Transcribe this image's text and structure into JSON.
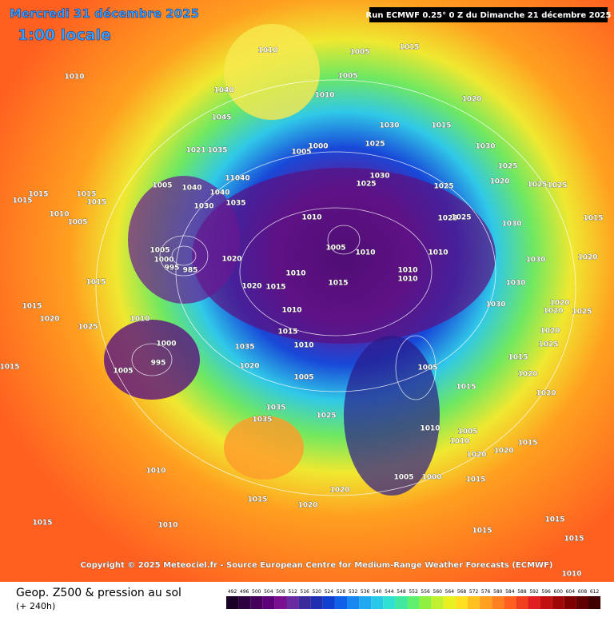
{
  "header": {
    "date": "Mercredi 31 décembre 2025",
    "time": "1:00 locale",
    "run": "Run ECMWF 0.25° 0 Z du Dimanche 21 décembre 2025"
  },
  "copyright": "Copyright © 2025 Meteociel.fr - Source European Centre for Medium-Range Weather Forecasts (ECMWF)",
  "footer": {
    "title": "Geop. Z500 & pression au sol",
    "lead": "(+ 240h)"
  },
  "legend": {
    "levels": [
      492,
      496,
      500,
      504,
      508,
      512,
      516,
      520,
      524,
      528,
      532,
      536,
      540,
      544,
      548,
      552,
      556,
      560,
      564,
      568,
      572,
      576,
      580,
      584,
      588,
      592,
      596,
      600,
      604,
      608,
      612
    ],
    "colors": [
      "#1a0026",
      "#2d0040",
      "#45005c",
      "#5e0078",
      "#7a1090",
      "#6a2aa0",
      "#3a2a9a",
      "#1f2fb0",
      "#1040d0",
      "#1060e8",
      "#1888f0",
      "#20a8f0",
      "#28c8e8",
      "#30e0d0",
      "#40e8a0",
      "#60f070",
      "#90f040",
      "#c0f030",
      "#e8f020",
      "#ffe020",
      "#ffc020",
      "#ffa020",
      "#ff8020",
      "#ff6020",
      "#f04020",
      "#e02020",
      "#c01010",
      "#a00808",
      "#800000",
      "#600000",
      "#400000"
    ]
  },
  "isobar_labels": [
    "1010",
    "1005",
    "1015",
    "1010",
    "1005",
    "1040",
    "1010",
    "1020",
    "1045",
    "1030",
    "1015",
    "1005",
    "1000",
    "1025",
    "1030",
    "1021",
    "1035",
    "1005",
    "11040",
    "1040",
    "1040",
    "1035",
    "1030",
    "1030",
    "1025",
    "1025",
    "1025",
    "1020",
    "1025",
    "1025",
    "1015",
    "1015",
    "1015",
    "1015",
    "1010",
    "1005",
    "1010",
    "1025",
    "1025",
    "1015",
    "1030",
    "1005",
    "1005",
    "1010",
    "1010",
    "1020",
    "1000",
    "995",
    "985",
    "1010",
    "1010",
    "1010",
    "1015",
    "1015",
    "1020",
    "1015",
    "1030",
    "1020",
    "1030",
    "1015",
    "1010",
    "1030",
    "1020",
    "1020",
    "1025",
    "1020",
    "1010",
    "1025",
    "1015",
    "1020",
    "1000",
    "1010",
    "1035",
    "1025",
    "995",
    "1015",
    "1015",
    "1020",
    "1005",
    "1005",
    "1005",
    "1020",
    "1015",
    "1035",
    "1035",
    "1025",
    "1020",
    "1010",
    "1005",
    "1010",
    "1020",
    "1020",
    "1015",
    "1010",
    "1005",
    "1000",
    "1015",
    "1020",
    "1015",
    "1020",
    "1015",
    "1010",
    "1015",
    "1015",
    "1015",
    "1010"
  ]
}
